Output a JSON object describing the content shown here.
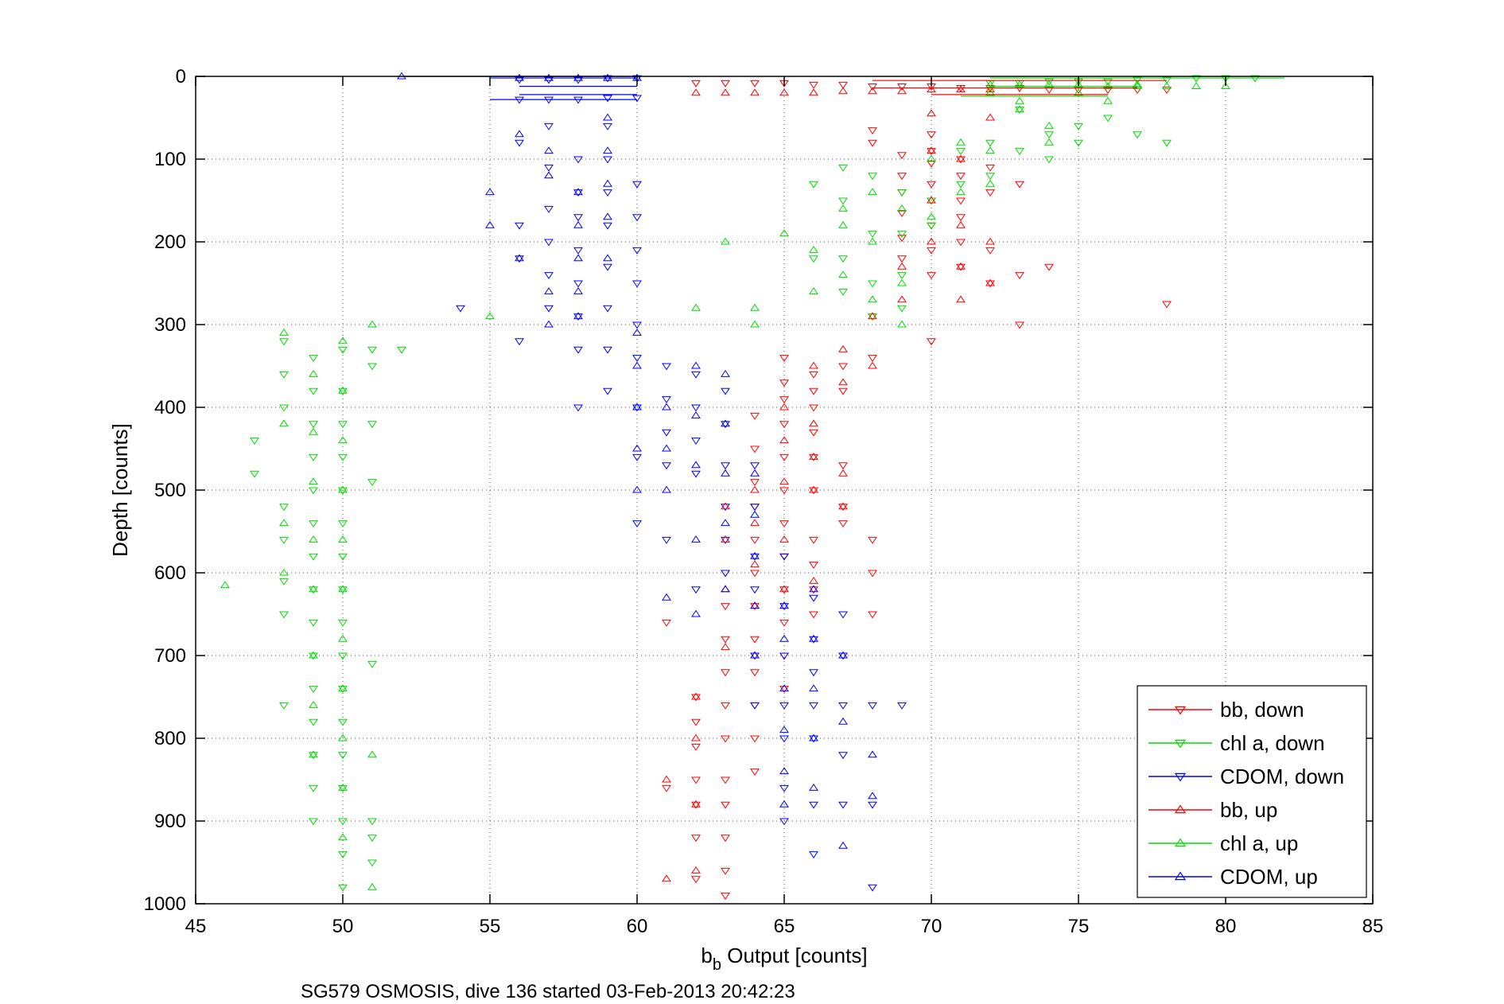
{
  "chart_data": {
    "type": "scatter",
    "title": "",
    "xlabel_base": "b",
    "xlabel_sub": "b",
    "xlabel_rest": " Output [counts]",
    "ylabel": "Depth [counts]",
    "caption": "SG579 OSMOSIS, dive 136 started 03-Feb-2013 20:42:23",
    "xlim": [
      45,
      85
    ],
    "ylim": [
      0,
      1000
    ],
    "y_reversed": true,
    "grid": true,
    "legend_position": "bottom-right",
    "xticks": [
      "45",
      "50",
      "55",
      "60",
      "65",
      "70",
      "75",
      "80",
      "85"
    ],
    "yticks": [
      "0",
      "100",
      "200",
      "300",
      "400",
      "500",
      "600",
      "700",
      "800",
      "900",
      "1000"
    ],
    "series": [
      {
        "name": "bb, down",
        "color": "#ff0000",
        "marker": "triangle-down",
        "x": [
          68,
          68,
          69,
          69,
          69,
          69,
          69,
          69,
          70,
          70,
          70,
          70,
          70,
          70,
          70,
          70,
          70,
          71,
          71,
          71,
          71,
          71,
          71,
          72,
          72,
          72,
          72,
          73,
          73,
          73,
          74,
          78,
          68,
          68,
          68,
          68,
          68,
          67,
          67,
          67,
          67,
          67,
          66,
          66,
          66,
          66,
          66,
          66,
          66,
          66,
          66,
          66,
          65,
          65,
          65,
          65,
          65,
          65,
          65,
          65,
          65,
          65,
          65,
          65,
          64,
          64,
          64,
          64,
          64,
          64,
          64,
          64,
          64,
          64,
          64,
          64,
          63,
          63,
          63,
          63,
          63,
          63,
          63,
          63,
          63,
          63,
          63,
          62,
          62,
          62,
          62,
          62,
          62,
          62,
          61,
          61,
          62,
          63,
          64,
          65,
          66,
          67,
          68,
          69,
          70,
          71,
          72,
          73,
          74,
          75,
          76,
          77,
          78
        ],
        "y": [
          65,
          80,
          95,
          120,
          140,
          165,
          195,
          220,
          70,
          90,
          105,
          130,
          150,
          180,
          210,
          240,
          320,
          100,
          120,
          150,
          170,
          200,
          230,
          110,
          140,
          210,
          250,
          130,
          240,
          300,
          230,
          275,
          290,
          340,
          560,
          600,
          650,
          350,
          380,
          470,
          520,
          540,
          360,
          380,
          400,
          430,
          460,
          500,
          560,
          590,
          620,
          650,
          340,
          370,
          390,
          420,
          460,
          500,
          540,
          580,
          620,
          660,
          700,
          740,
          410,
          450,
          490,
          520,
          560,
          600,
          640,
          680,
          720,
          760,
          800,
          840,
          600,
          640,
          680,
          720,
          760,
          800,
          850,
          880,
          920,
          960,
          990,
          750,
          780,
          810,
          850,
          880,
          920,
          970,
          660,
          860,
          8,
          8,
          8,
          8,
          10,
          10,
          12,
          12,
          12,
          14,
          14,
          14,
          16,
          16,
          16,
          16,
          16
        ]
      },
      {
        "name": "chl a, down",
        "color": "#00dd00",
        "marker": "triangle-down",
        "x": [
          47,
          47,
          48,
          48,
          48,
          48,
          48,
          48,
          48,
          48,
          49,
          49,
          49,
          49,
          49,
          49,
          49,
          49,
          49,
          49,
          49,
          49,
          49,
          49,
          49,
          50,
          50,
          50,
          50,
          50,
          50,
          50,
          50,
          50,
          50,
          50,
          50,
          50,
          50,
          50,
          50,
          50,
          51,
          51,
          51,
          51,
          51,
          51,
          51,
          51,
          52,
          66,
          66,
          67,
          67,
          67,
          67,
          68,
          68,
          68,
          68,
          69,
          69,
          69,
          69,
          70,
          70,
          71,
          71,
          72,
          72,
          73,
          73,
          74,
          74,
          75,
          75,
          76,
          77,
          78,
          72,
          73,
          74,
          75,
          76,
          77,
          78,
          79,
          80,
          81
        ],
        "y": [
          440,
          480,
          320,
          360,
          400,
          520,
          560,
          610,
          650,
          760,
          340,
          380,
          420,
          460,
          500,
          540,
          580,
          620,
          660,
          700,
          740,
          780,
          820,
          860,
          900,
          330,
          380,
          420,
          460,
          500,
          540,
          580,
          620,
          660,
          700,
          740,
          780,
          820,
          860,
          900,
          940,
          980,
          330,
          350,
          420,
          490,
          710,
          900,
          920,
          950,
          330,
          130,
          220,
          110,
          150,
          220,
          260,
          120,
          190,
          250,
          290,
          140,
          190,
          240,
          280,
          150,
          180,
          90,
          130,
          80,
          120,
          40,
          90,
          70,
          100,
          60,
          80,
          50,
          70,
          80,
          8,
          8,
          6,
          6,
          6,
          4,
          4,
          2,
          2,
          2
        ]
      },
      {
        "name": "CDOM, down",
        "color": "#0000ff",
        "marker": "triangle-down",
        "x": [
          54,
          56,
          56,
          56,
          56,
          57,
          57,
          57,
          57,
          57,
          57,
          58,
          58,
          58,
          58,
          58,
          58,
          58,
          58,
          59,
          59,
          59,
          59,
          59,
          59,
          59,
          59,
          60,
          60,
          60,
          60,
          60,
          60,
          60,
          60,
          60,
          61,
          61,
          61,
          61,
          61,
          62,
          62,
          62,
          62,
          62,
          63,
          63,
          63,
          63,
          63,
          63,
          64,
          64,
          64,
          64,
          64,
          64,
          65,
          65,
          65,
          65,
          65,
          65,
          65,
          66,
          66,
          66,
          66,
          66,
          66,
          66,
          67,
          67,
          67,
          67,
          67,
          68,
          68,
          68,
          69,
          56,
          57,
          58,
          59,
          60,
          56,
          57,
          58,
          59,
          60
        ],
        "y": [
          280,
          320,
          80,
          180,
          220,
          60,
          110,
          160,
          200,
          240,
          280,
          100,
          140,
          170,
          210,
          250,
          290,
          330,
          400,
          60,
          100,
          140,
          180,
          230,
          280,
          330,
          380,
          130,
          170,
          210,
          250,
          300,
          340,
          400,
          460,
          540,
          350,
          390,
          430,
          470,
          560,
          360,
          400,
          440,
          480,
          620,
          380,
          420,
          470,
          520,
          560,
          600,
          470,
          520,
          580,
          620,
          700,
          760,
          580,
          640,
          700,
          760,
          800,
          860,
          900,
          630,
          680,
          720,
          760,
          800,
          880,
          940,
          650,
          700,
          760,
          820,
          880,
          760,
          880,
          980,
          760,
          4,
          4,
          4,
          2,
          2,
          28,
          28,
          28,
          26,
          26
        ]
      },
      {
        "name": "bb, up",
        "color": "#ff0000",
        "marker": "triangle-up",
        "x": [
          68,
          69,
          69,
          70,
          70,
          70,
          70,
          71,
          71,
          71,
          71,
          72,
          72,
          72,
          68,
          67,
          67,
          67,
          67,
          66,
          66,
          66,
          66,
          66,
          65,
          65,
          65,
          65,
          65,
          64,
          64,
          64,
          64,
          64,
          63,
          63,
          63,
          63,
          62,
          62,
          62,
          62,
          61,
          61,
          62,
          63,
          64,
          65,
          66,
          67,
          68,
          69,
          70,
          71,
          72
        ],
        "y": [
          290,
          230,
          270,
          45,
          90,
          150,
          200,
          100,
          180,
          230,
          270,
          50,
          200,
          250,
          350,
          330,
          370,
          480,
          520,
          350,
          420,
          460,
          500,
          610,
          400,
          440,
          490,
          560,
          620,
          500,
          540,
          590,
          640,
          700,
          520,
          560,
          620,
          690,
          750,
          800,
          880,
          960,
          850,
          970,
          20,
          20,
          20,
          20,
          20,
          18,
          18,
          18,
          16,
          16,
          16
        ]
      },
      {
        "name": "chl a, up",
        "color": "#00dd00",
        "marker": "triangle-up",
        "x": [
          46,
          48,
          48,
          48,
          48,
          49,
          49,
          49,
          49,
          49,
          49,
          49,
          49,
          50,
          50,
          50,
          50,
          50,
          50,
          50,
          50,
          50,
          50,
          50,
          51,
          51,
          51,
          55,
          62,
          63,
          64,
          64,
          65,
          66,
          66,
          67,
          67,
          67,
          68,
          68,
          68,
          69,
          69,
          69,
          70,
          70,
          71,
          71,
          72,
          72,
          72,
          73,
          73,
          74,
          74,
          75,
          76,
          77,
          72,
          73,
          74,
          75,
          76,
          77,
          78,
          79,
          80
        ],
        "y": [
          615,
          310,
          420,
          540,
          600,
          360,
          430,
          490,
          560,
          620,
          700,
          760,
          820,
          320,
          380,
          440,
          500,
          560,
          620,
          680,
          740,
          800,
          860,
          920,
          980,
          300,
          820,
          290,
          280,
          200,
          280,
          300,
          190,
          210,
          260,
          240,
          160,
          180,
          140,
          200,
          270,
          160,
          250,
          300,
          100,
          170,
          80,
          140,
          90,
          130,
          20,
          40,
          30,
          60,
          80,
          20,
          30,
          10,
          10,
          10,
          10,
          10,
          12,
          12,
          12,
          12,
          12
        ]
      },
      {
        "name": "CDOM, up",
        "color": "#0000ff",
        "marker": "triangle-up",
        "x": [
          52,
          55,
          55,
          56,
          56,
          57,
          57,
          57,
          57,
          58,
          58,
          58,
          58,
          58,
          59,
          59,
          59,
          59,
          59,
          60,
          60,
          60,
          60,
          60,
          61,
          61,
          61,
          61,
          62,
          62,
          62,
          62,
          62,
          63,
          63,
          63,
          63,
          63,
          64,
          64,
          64,
          64,
          64,
          65,
          65,
          65,
          65,
          65,
          65,
          66,
          66,
          66,
          66,
          66,
          67,
          67,
          67,
          68,
          68,
          56,
          57,
          58,
          59,
          60
        ],
        "y": [
          0,
          140,
          180,
          70,
          220,
          90,
          120,
          260,
          300,
          140,
          180,
          220,
          260,
          290,
          50,
          90,
          130,
          170,
          220,
          310,
          350,
          400,
          450,
          500,
          400,
          450,
          500,
          630,
          350,
          410,
          470,
          560,
          650,
          360,
          420,
          480,
          540,
          620,
          480,
          530,
          580,
          640,
          700,
          640,
          680,
          740,
          790,
          840,
          880,
          620,
          680,
          740,
          800,
          860,
          700,
          780,
          930,
          820,
          870,
          2,
          2,
          2,
          2,
          2
        ]
      }
    ]
  }
}
